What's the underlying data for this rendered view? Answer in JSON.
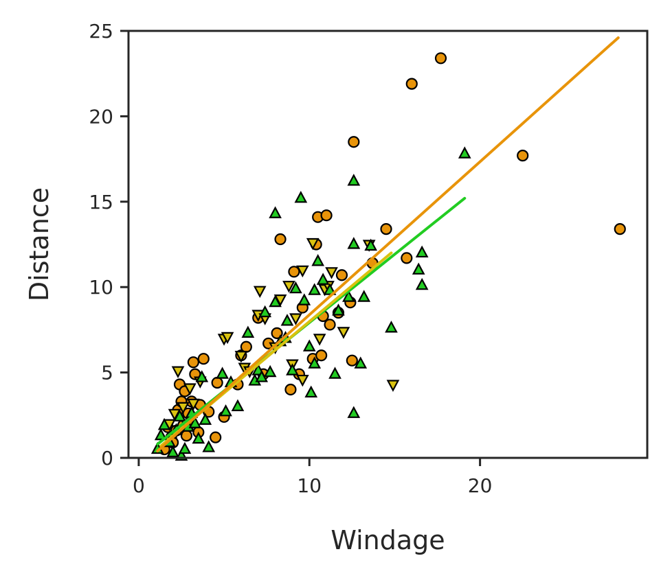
{
  "chart_data": {
    "type": "scatter",
    "xlabel": "Windage",
    "ylabel": "Distance",
    "xlim": [
      -0.6,
      29.8
    ],
    "ylim": [
      0,
      25
    ],
    "x_ticks": [
      0,
      10,
      20
    ],
    "y_ticks": [
      0,
      5,
      10,
      15,
      20,
      25
    ],
    "grid": false,
    "legend": "none",
    "series": [
      {
        "marker": "circle",
        "color": "#e8940a",
        "points": [
          [
            1.5,
            0.5
          ],
          [
            1.7,
            1.8
          ],
          [
            1.9,
            1.2
          ],
          [
            2.0,
            0.9
          ],
          [
            2.2,
            1.6
          ],
          [
            2.3,
            2.8
          ],
          [
            2.4,
            4.3
          ],
          [
            2.5,
            3.3
          ],
          [
            2.6,
            1.9
          ],
          [
            2.7,
            3.9
          ],
          [
            2.8,
            1.3
          ],
          [
            2.9,
            2.6
          ],
          [
            3.0,
            2.0
          ],
          [
            3.1,
            3.3
          ],
          [
            3.2,
            5.6
          ],
          [
            3.3,
            4.9
          ],
          [
            3.5,
            1.5
          ],
          [
            3.6,
            3.1
          ],
          [
            3.8,
            5.8
          ],
          [
            4.1,
            2.7
          ],
          [
            4.5,
            1.2
          ],
          [
            4.6,
            4.4
          ],
          [
            5.0,
            2.4
          ],
          [
            5.8,
            4.3
          ],
          [
            6.0,
            6.0
          ],
          [
            6.3,
            6.5
          ],
          [
            7.0,
            8.2
          ],
          [
            7.3,
            4.9
          ],
          [
            7.6,
            6.7
          ],
          [
            8.1,
            7.3
          ],
          [
            8.3,
            12.8
          ],
          [
            8.9,
            4.0
          ],
          [
            9.1,
            10.9
          ],
          [
            9.4,
            4.9
          ],
          [
            9.6,
            8.8
          ],
          [
            10.2,
            5.8
          ],
          [
            10.4,
            12.5
          ],
          [
            10.5,
            14.1
          ],
          [
            10.7,
            6.0
          ],
          [
            10.8,
            8.3
          ],
          [
            11.0,
            14.2
          ],
          [
            11.2,
            7.8
          ],
          [
            11.7,
            8.5
          ],
          [
            11.9,
            10.7
          ],
          [
            12.4,
            9.1
          ],
          [
            12.5,
            5.7
          ],
          [
            12.6,
            18.5
          ],
          [
            13.7,
            11.4
          ],
          [
            14.5,
            13.4
          ],
          [
            15.7,
            11.7
          ],
          [
            16.0,
            21.9
          ],
          [
            17.7,
            23.4
          ],
          [
            22.5,
            17.7
          ],
          [
            28.2,
            13.4
          ]
        ],
        "trend": [
          [
            1.1,
            0.4
          ],
          [
            28.1,
            24.6
          ]
        ]
      },
      {
        "marker": "triangle-down",
        "color": "#d9c210",
        "points": [
          [
            1.8,
            2.0
          ],
          [
            2.1,
            2.6
          ],
          [
            2.3,
            5.1
          ],
          [
            2.6,
            3.0
          ],
          [
            2.8,
            2.0
          ],
          [
            3.0,
            4.1
          ],
          [
            3.2,
            3.2
          ],
          [
            3.6,
            4.5
          ],
          [
            5.0,
            7.0
          ],
          [
            5.2,
            7.1
          ],
          [
            6.0,
            6.0
          ],
          [
            6.2,
            5.3
          ],
          [
            7.0,
            8.4
          ],
          [
            7.4,
            8.2
          ],
          [
            7.1,
            9.8
          ],
          [
            8.0,
            6.5
          ],
          [
            8.3,
            9.3
          ],
          [
            8.8,
            10.1
          ],
          [
            9.0,
            5.5
          ],
          [
            9.6,
            11.0
          ],
          [
            10.2,
            12.6
          ],
          [
            10.6,
            7.0
          ],
          [
            10.9,
            9.9
          ],
          [
            11.1,
            10.1
          ],
          [
            11.3,
            10.9
          ],
          [
            12.0,
            7.4
          ],
          [
            9.6,
            4.6
          ],
          [
            13.5,
            12.5
          ],
          [
            14.9,
            4.3
          ],
          [
            9.2,
            8.2
          ],
          [
            6.5,
            5.1
          ]
        ],
        "trend": [
          [
            1.3,
            0.7
          ],
          [
            14.8,
            12.0
          ]
        ]
      },
      {
        "marker": "triangle-up",
        "color": "#22cc22",
        "points": [
          [
            1.1,
            0.5
          ],
          [
            1.3,
            1.3
          ],
          [
            1.5,
            1.9
          ],
          [
            1.8,
            0.9
          ],
          [
            2.0,
            0.3
          ],
          [
            2.2,
            1.6
          ],
          [
            2.4,
            2.4
          ],
          [
            2.5,
            0.1
          ],
          [
            2.7,
            0.5
          ],
          [
            2.9,
            1.8
          ],
          [
            3.1,
            2.6
          ],
          [
            3.3,
            2.0
          ],
          [
            3.5,
            1.1
          ],
          [
            3.7,
            4.7
          ],
          [
            3.9,
            2.2
          ],
          [
            4.1,
            0.6
          ],
          [
            4.9,
            4.9
          ],
          [
            5.1,
            2.7
          ],
          [
            5.4,
            4.4
          ],
          [
            5.8,
            3.0
          ],
          [
            6.4,
            7.3
          ],
          [
            6.8,
            4.5
          ],
          [
            7.0,
            5.1
          ],
          [
            7.2,
            4.7
          ],
          [
            7.4,
            8.5
          ],
          [
            7.7,
            5.0
          ],
          [
            8.0,
            9.1
          ],
          [
            8.0,
            14.3
          ],
          [
            8.3,
            6.8
          ],
          [
            8.6,
            7.0
          ],
          [
            9.0,
            5.1
          ],
          [
            9.2,
            9.9
          ],
          [
            9.5,
            15.2
          ],
          [
            9.7,
            9.2
          ],
          [
            10.0,
            6.5
          ],
          [
            10.1,
            3.8
          ],
          [
            10.3,
            5.5
          ],
          [
            10.3,
            9.8
          ],
          [
            10.5,
            11.5
          ],
          [
            10.8,
            10.4
          ],
          [
            11.5,
            4.9
          ],
          [
            11.7,
            8.6
          ],
          [
            12.3,
            9.4
          ],
          [
            12.6,
            2.6
          ],
          [
            12.6,
            12.5
          ],
          [
            12.6,
            16.2
          ],
          [
            13.0,
            5.5
          ],
          [
            13.2,
            9.4
          ],
          [
            13.6,
            12.4
          ],
          [
            14.8,
            7.6
          ],
          [
            16.4,
            11.0
          ],
          [
            16.6,
            12.0
          ],
          [
            16.6,
            10.1
          ],
          [
            19.1,
            17.8
          ],
          [
            8.7,
            8.0
          ],
          [
            11.2,
            9.8
          ]
        ],
        "trend": [
          [
            1.1,
            0.8
          ],
          [
            19.1,
            15.2
          ]
        ]
      }
    ]
  }
}
